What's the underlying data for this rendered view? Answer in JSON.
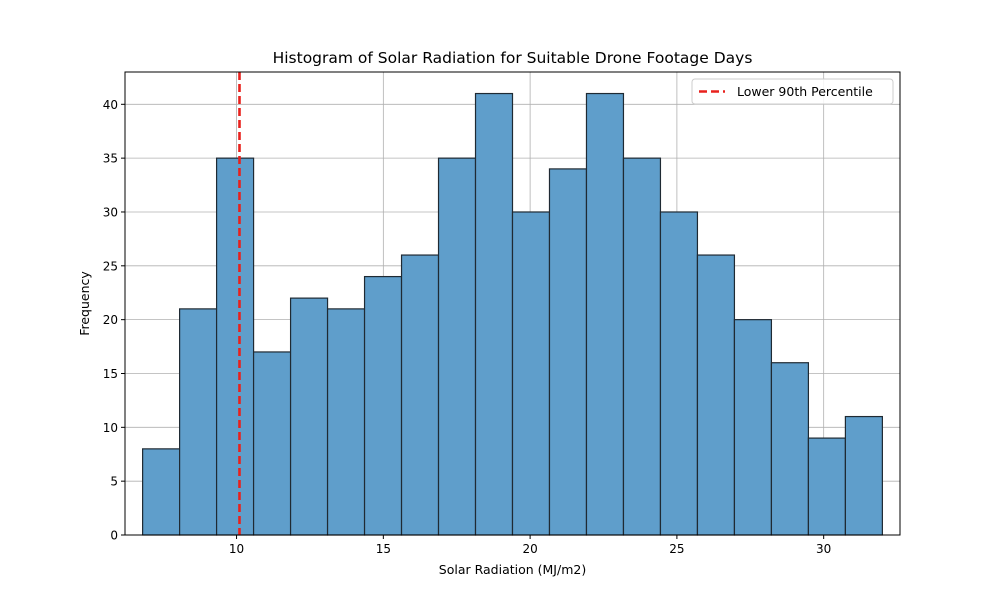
{
  "chart_data": {
    "type": "histogram",
    "title": "Histogram of Solar Radiation for Suitable Drone Footage Days",
    "xlabel": "Solar Radiation (MJ/m2)",
    "ylabel": "Frequency",
    "xlim": [
      6.2,
      32.6
    ],
    "ylim": [
      0,
      43
    ],
    "xticks": [
      10,
      15,
      20,
      25,
      30
    ],
    "yticks": [
      0,
      5,
      10,
      15,
      20,
      25,
      30,
      35,
      40
    ],
    "grid": true,
    "bin_edges": [
      6.8,
      8.06,
      9.32,
      10.58,
      11.84,
      13.1,
      14.36,
      15.62,
      16.88,
      18.14,
      19.4,
      20.66,
      21.92,
      23.18,
      24.44,
      25.7,
      26.96,
      28.22,
      29.48,
      30.74,
      32.0
    ],
    "counts": [
      8,
      21,
      35,
      17,
      22,
      21,
      24,
      26,
      35,
      41,
      30,
      34,
      41,
      35,
      30,
      26,
      20,
      16,
      9,
      11
    ],
    "bar_color": "#5f9ecb",
    "bar_edge_color": "#1f2a33",
    "percentile_line": {
      "label": "Lower 90th Percentile",
      "x": 10.1,
      "color": "#e8211d",
      "style": "dashed"
    },
    "legend_position": "upper right"
  }
}
